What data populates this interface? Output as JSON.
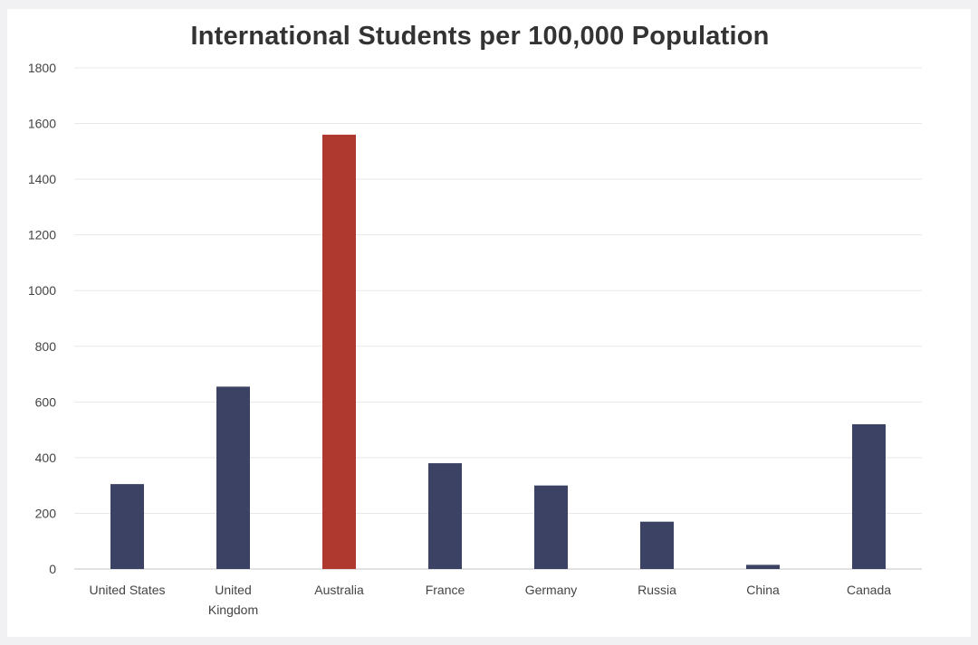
{
  "chart_data": {
    "type": "bar",
    "title": "International Students per 100,000 Population",
    "xlabel": "",
    "ylabel": "",
    "categories": [
      "United States",
      "United Kingdom",
      "Australia",
      "France",
      "Germany",
      "Russia",
      "China",
      "Canada"
    ],
    "category_lines": [
      [
        "United States"
      ],
      [
        "United",
        "Kingdom"
      ],
      [
        "Australia"
      ],
      [
        "France"
      ],
      [
        "Germany"
      ],
      [
        "Russia"
      ],
      [
        "China"
      ],
      [
        "Canada"
      ]
    ],
    "values": [
      305,
      655,
      1560,
      380,
      300,
      170,
      15,
      520
    ],
    "ylim": [
      0,
      1800
    ],
    "yticks": [
      0,
      200,
      400,
      600,
      800,
      1000,
      1200,
      1400,
      1600,
      1800
    ],
    "grid": true,
    "legend": "none",
    "colors": {
      "default_bar": "#3b4263",
      "highlight_bar": "#b0392f",
      "highlight_category": "Australia",
      "grid": "#e8e8ea",
      "axis": "#d9d9d9"
    }
  }
}
